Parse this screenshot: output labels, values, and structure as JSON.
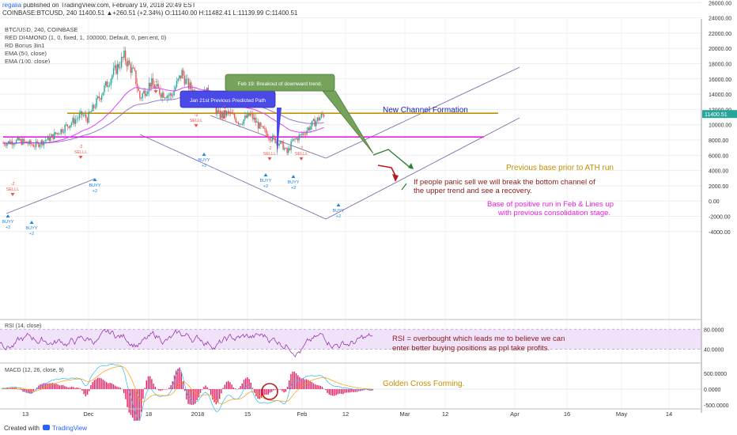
{
  "header": {
    "user": "regalia",
    "published": " published on TradingView.com, February 19, 2018 20:49 EST",
    "ohlc": "COINBASE:BTCUSD, 240  11400.51 ▲+260.51 (+2.34%) O:11140.00 H:11482.41 L:11139.99 C:11400.51"
  },
  "indicators": [
    "BTC/USD, 240, COINBASE",
    "RED DIAMOND (1, 0, fixed, 1, 100000, Default, 0, percent, 0)",
    "RD Bonus 3in1",
    "EMA (50, close)",
    "EMA (100, close)"
  ],
  "rsi_label": "RSI (14, close)",
  "macd_label": "MACD (12, 26, close, 9)",
  "annotations": {
    "jan21": "Jan 21st Previous Predicted Path",
    "feb19": "Feb 19: Breakout of downward trend.",
    "new_channel": "New Channel Formation",
    "prev_base": "Previous base prior to ATH run",
    "panic_l1": "If people panic sell we will break the bottom channel of",
    "panic_l2": "the upper trend and see a recovery.",
    "base_l1": "Base of positive run in Feb & Lines up",
    "base_l2": "with previous consolidation stage.",
    "rsi_l1": "RSI = overbought which leads me to believe we can",
    "rsi_l2": "enter better buying positions as ppl take profits.",
    "golden": "Golden Cross Forming."
  },
  "signals": {
    "sell": "SELLL",
    "buy": "BUYY",
    "minus2": "-2",
    "plus2": "+2"
  },
  "footer": {
    "created": "Created with",
    "brand": "TradingView"
  },
  "colors": {
    "up": "#26a69a",
    "down": "#ef5350",
    "ema_fast": "#e040fb",
    "ema_slow": "#7e57c2",
    "channel": "#7e6ba8",
    "gold": "#c29100",
    "magenta": "#e91ee0",
    "rsi_line": "#8e24aa",
    "rsi_band": "#e9d6f5",
    "macd_hist": "#e91e63",
    "green_arrow": "#2e7d32",
    "dark_red": "#b71c1c",
    "blue_text": "#1a23b5"
  },
  "chart_data": [
    {
      "type": "candlestick",
      "title": "BTC/USD, 240, COINBASE",
      "x_ticks": [
        "13",
        "Dec",
        "18",
        "2018",
        "15",
        "Feb",
        "12",
        "Mar",
        "12",
        "Apr",
        "16",
        "May",
        "14"
      ],
      "y_ticks": [
        26000,
        24000,
        22000,
        20000,
        18000,
        16000,
        14000,
        12000,
        10000,
        8000,
        6000,
        4000,
        2000,
        0,
        -2000,
        -4000
      ],
      "y_tick_labels": [
        "26000.00",
        "24000.00",
        "22000.00",
        "20000.00",
        "18000.00",
        "16000.00",
        "14000.00",
        "12000.00",
        "10000.00",
        "8000.00",
        "6000.00",
        "4000.00",
        "2000.00",
        "0.00",
        "-2000.00",
        "-4000.00"
      ],
      "ylim": [
        -4500,
        27000
      ],
      "price_path": [
        [
          0,
          7600
        ],
        [
          3,
          7900
        ],
        [
          6,
          7300
        ],
        [
          9,
          8300
        ],
        [
          12,
          9800
        ],
        [
          15,
          11300
        ],
        [
          16,
          10800
        ],
        [
          19,
          14500
        ],
        [
          21,
          16800
        ],
        [
          23,
          18900
        ],
        [
          25,
          16500
        ],
        [
          26,
          13500
        ],
        [
          28,
          15500
        ],
        [
          30,
          14200
        ],
        [
          32,
          13800
        ],
        [
          34,
          16800
        ],
        [
          35,
          15300
        ],
        [
          37,
          13800
        ],
        [
          39,
          14200
        ],
        [
          41,
          11200
        ],
        [
          43,
          11500
        ],
        [
          45,
          10300
        ],
        [
          47,
          11300
        ],
        [
          49,
          9500
        ],
        [
          51,
          8300
        ],
        [
          53,
          7400
        ],
        [
          54,
          6300
        ],
        [
          55,
          7800
        ],
        [
          57,
          8800
        ],
        [
          59,
          10200
        ],
        [
          61,
          11400
        ]
      ],
      "levels": {
        "previous_base": 11500,
        "feb_base": 8400
      },
      "last_price": 11400.51
    },
    {
      "type": "line",
      "title": "RSI (14, close)",
      "y_ticks": [
        80,
        40
      ],
      "y_tick_labels": [
        "80.0000",
        "40.0000"
      ],
      "band": [
        40,
        80
      ]
    },
    {
      "type": "bar",
      "title": "MACD (12, 26, close, 9)",
      "y_ticks": [
        500,
        0,
        -500
      ],
      "y_tick_labels": [
        "500.0000",
        "0.0000",
        "-500.0000"
      ]
    }
  ]
}
